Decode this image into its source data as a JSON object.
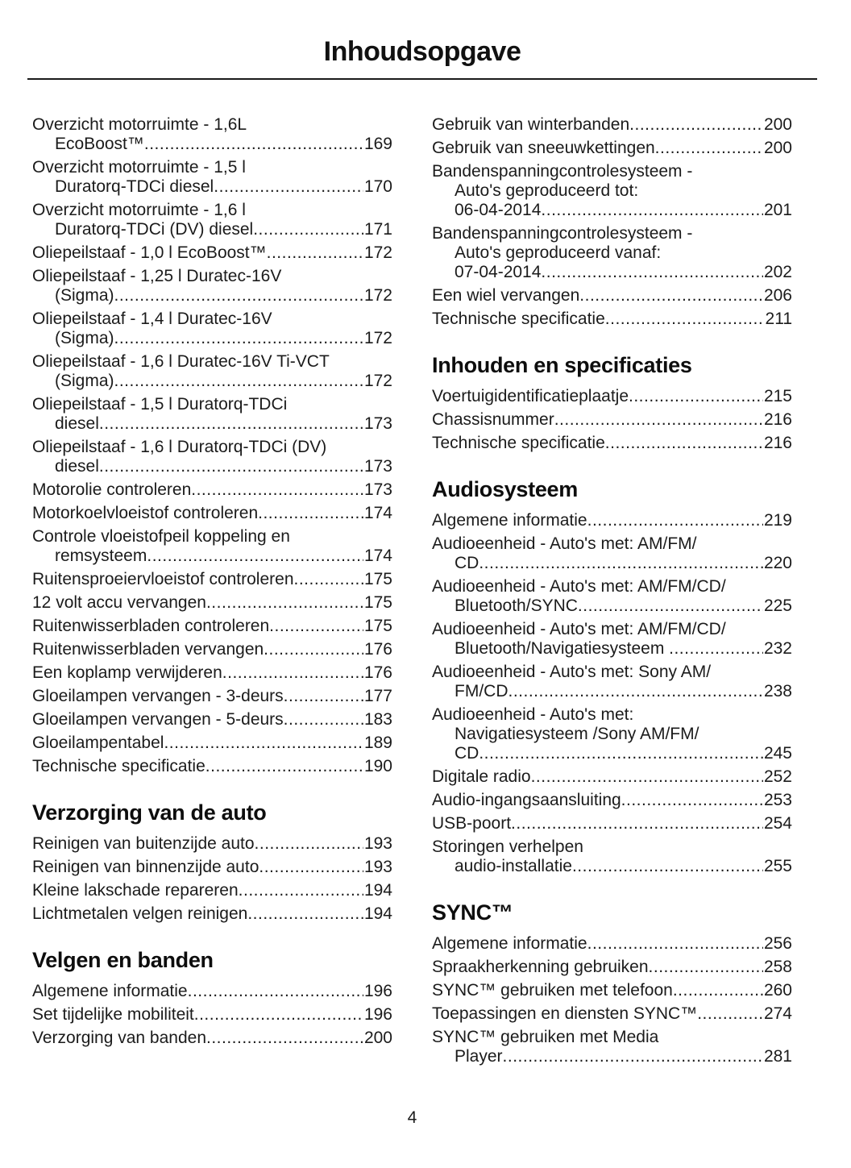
{
  "page": {
    "title": "Inhoudsopgave",
    "page_number": "4"
  },
  "columns": [
    {
      "name": "left",
      "sections": [
        {
          "heading": null,
          "entries": [
            {
              "lines": [
                "Overzicht motorruimte - 1,6L",
                "EcoBoost™"
              ],
              "page": "169"
            },
            {
              "lines": [
                "Overzicht motorruimte - 1,5 l",
                "Duratorq-TDCi diesel"
              ],
              "page": "170"
            },
            {
              "lines": [
                "Overzicht motorruimte - 1,6 l",
                "Duratorq-TDCi (DV) diesel"
              ],
              "page": "171"
            },
            {
              "lines": [
                "Oliepeilstaaf - 1,0 l EcoBoost™"
              ],
              "page": "172"
            },
            {
              "lines": [
                "Oliepeilstaaf - 1,25 l Duratec-16V",
                "(Sigma)"
              ],
              "page": "172"
            },
            {
              "lines": [
                "Oliepeilstaaf - 1,4 l Duratec-16V",
                "(Sigma)"
              ],
              "page": "172"
            },
            {
              "lines": [
                "Oliepeilstaaf - 1,6 l Duratec-16V Ti-VCT",
                "(Sigma)"
              ],
              "page": "172"
            },
            {
              "lines": [
                "Oliepeilstaaf - 1,5 l Duratorq-TDCi",
                "diesel"
              ],
              "page": "173"
            },
            {
              "lines": [
                "Oliepeilstaaf - 1,6 l Duratorq-TDCi (DV)",
                "diesel"
              ],
              "page": "173"
            },
            {
              "lines": [
                "Motorolie controleren"
              ],
              "page": "173"
            },
            {
              "lines": [
                "Motorkoelvloeistof controleren"
              ],
              "page": "174"
            },
            {
              "lines": [
                "Controle vloeistofpeil koppeling en",
                "remsysteem"
              ],
              "page": "174"
            },
            {
              "lines": [
                "Ruitensproeiervloeistof controleren"
              ],
              "page": "175"
            },
            {
              "lines": [
                "12 volt accu vervangen"
              ],
              "page": "175"
            },
            {
              "lines": [
                "Ruitenwisserbladen controleren"
              ],
              "page": "175"
            },
            {
              "lines": [
                "Ruitenwisserbladen vervangen"
              ],
              "page": "176"
            },
            {
              "lines": [
                "Een koplamp verwijderen"
              ],
              "page": "176"
            },
            {
              "lines": [
                "Gloeilampen vervangen - 3-deurs"
              ],
              "page": "177"
            },
            {
              "lines": [
                "Gloeilampen vervangen - 5-deurs"
              ],
              "page": "183"
            },
            {
              "lines": [
                "Gloeilampentabel"
              ],
              "page": "189"
            },
            {
              "lines": [
                "Technische specificatie"
              ],
              "page": "190"
            }
          ]
        },
        {
          "heading": "Verzorging van de auto",
          "entries": [
            {
              "lines": [
                "Reinigen van buitenzijde auto"
              ],
              "page": "193"
            },
            {
              "lines": [
                "Reinigen van binnenzijde auto"
              ],
              "page": "193"
            },
            {
              "lines": [
                "Kleine lakschade repareren"
              ],
              "page": "194"
            },
            {
              "lines": [
                "Lichtmetalen velgen reinigen"
              ],
              "page": "194"
            }
          ]
        },
        {
          "heading": "Velgen en banden",
          "entries": [
            {
              "lines": [
                "Algemene informatie"
              ],
              "page": "196"
            },
            {
              "lines": [
                "Set tijdelijke mobiliteit"
              ],
              "page": "196"
            },
            {
              "lines": [
                "Verzorging van banden"
              ],
              "page": "200"
            }
          ]
        }
      ]
    },
    {
      "name": "right",
      "sections": [
        {
          "heading": null,
          "entries": [
            {
              "lines": [
                "Gebruik van winterbanden"
              ],
              "page": "200"
            },
            {
              "lines": [
                "Gebruik van sneeuwkettingen"
              ],
              "page": "200"
            },
            {
              "lines": [
                "Bandenspanningcontrolesysteem -",
                "Auto's geproduceerd tot:",
                "06-04-2014"
              ],
              "page": "201"
            },
            {
              "lines": [
                "Bandenspanningcontrolesysteem -",
                "Auto's geproduceerd vanaf:",
                "07-04-2014"
              ],
              "page": "202"
            },
            {
              "lines": [
                "Een wiel vervangen"
              ],
              "page": "206"
            },
            {
              "lines": [
                "Technische specificatie"
              ],
              "page": "211"
            }
          ]
        },
        {
          "heading": "Inhouden en specificaties",
          "entries": [
            {
              "lines": [
                "Voertuigidentificatieplaatje"
              ],
              "page": "215"
            },
            {
              "lines": [
                "Chassisnummer"
              ],
              "page": "216"
            },
            {
              "lines": [
                "Technische specificatie"
              ],
              "page": "216"
            }
          ]
        },
        {
          "heading": "Audiosysteem",
          "entries": [
            {
              "lines": [
                "Algemene informatie"
              ],
              "page": "219"
            },
            {
              "lines": [
                "Audioeenheid - Auto's met: AM/FM/",
                "CD"
              ],
              "page": "220"
            },
            {
              "lines": [
                "Audioeenheid - Auto's met: AM/FM/CD/",
                "Bluetooth/SYNC"
              ],
              "page": "225"
            },
            {
              "lines": [
                "Audioeenheid - Auto's met: AM/FM/CD/",
                "Bluetooth/Navigatiesysteem "
              ],
              "page": "232"
            },
            {
              "lines": [
                "Audioeenheid - Auto's met: Sony AM/",
                "FM/CD"
              ],
              "page": "238"
            },
            {
              "lines": [
                "Audioeenheid - Auto's met:",
                "Navigatiesysteem /Sony AM/FM/",
                "CD"
              ],
              "page": "245"
            },
            {
              "lines": [
                "Digitale radio"
              ],
              "page": "252"
            },
            {
              "lines": [
                "Audio-ingangsaansluiting"
              ],
              "page": "253"
            },
            {
              "lines": [
                "USB-poort"
              ],
              "page": "254"
            },
            {
              "lines": [
                "Storingen verhelpen",
                "audio-installatie"
              ],
              "page": "255"
            }
          ]
        },
        {
          "heading": "SYNC™",
          "entries": [
            {
              "lines": [
                "Algemene informatie"
              ],
              "page": "256"
            },
            {
              "lines": [
                "Spraakherkenning gebruiken"
              ],
              "page": "258"
            },
            {
              "lines": [
                "SYNC™ gebruiken met telefoon"
              ],
              "page": "260"
            },
            {
              "lines": [
                "Toepassingen en diensten SYNC™"
              ],
              "page": "274"
            },
            {
              "lines": [
                "SYNC™ gebruiken met Media",
                "Player"
              ],
              "page": "281"
            }
          ]
        }
      ]
    }
  ]
}
